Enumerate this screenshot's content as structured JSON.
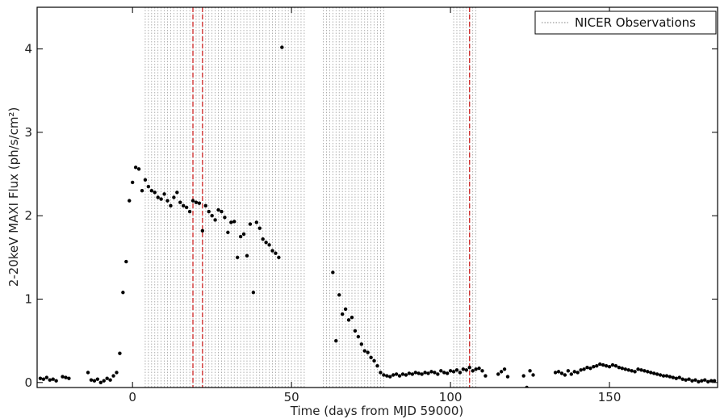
{
  "chart_data": {
    "type": "scatter",
    "xlabel": "Time (days from MJD 59000)",
    "ylabel": "2-20keV MAXI Flux (ph/s/cm²)",
    "xlim": [
      -30,
      184
    ],
    "ylim": [
      -0.06,
      4.5
    ],
    "x_ticks": [
      0,
      50,
      100,
      150
    ],
    "y_ticks": [
      0,
      1,
      2,
      3,
      4
    ],
    "grid": false,
    "legend": {
      "placement": "top-right",
      "entries": [
        "NICER Observations"
      ]
    },
    "colors": {
      "points": "#000000",
      "nicer_lines": "#9a9a9a",
      "highlight_lines": "#cc2222",
      "frame": "#000000"
    },
    "series": [
      {
        "name": "MAXI flux",
        "x": [
          -29,
          -28,
          -27,
          -26,
          -25,
          -24,
          -22,
          -21,
          -20,
          -14,
          -13,
          -12,
          -11,
          -10,
          -9,
          -8,
          -7,
          -6,
          -5,
          -4,
          -3,
          -2,
          -1,
          0,
          1,
          2,
          3,
          4,
          5,
          6,
          7,
          8,
          9,
          10,
          11,
          12,
          13,
          14,
          15,
          16,
          17,
          18,
          19,
          20,
          21,
          22,
          23,
          24,
          25,
          26,
          27,
          28,
          29,
          30,
          31,
          32,
          33,
          34,
          35,
          36,
          37,
          38,
          39,
          40,
          41,
          42,
          43,
          44,
          45,
          46,
          47,
          63,
          64,
          65,
          66,
          67,
          68,
          69,
          70,
          71,
          72,
          73,
          74,
          75,
          76,
          77,
          78,
          79,
          80,
          81,
          82,
          83,
          84,
          85,
          86,
          87,
          88,
          89,
          90,
          91,
          92,
          93,
          94,
          95,
          96,
          97,
          98,
          99,
          100,
          101,
          102,
          103,
          104,
          105,
          106,
          107,
          108,
          109,
          110,
          111,
          115,
          116,
          117,
          118,
          123,
          124,
          125,
          126,
          133,
          134,
          135,
          136,
          137,
          138,
          139,
          140,
          141,
          142,
          143,
          144,
          145,
          146,
          147,
          148,
          149,
          150,
          151,
          152,
          153,
          154,
          155,
          156,
          157,
          158,
          159,
          160,
          161,
          162,
          163,
          164,
          165,
          166,
          167,
          168,
          169,
          170,
          171,
          172,
          173,
          174,
          175,
          176,
          177,
          178,
          179,
          180,
          181,
          182,
          183
        ],
        "y": [
          0.05,
          0.04,
          0.06,
          0.03,
          0.04,
          0.02,
          0.07,
          0.06,
          0.05,
          0.12,
          0.03,
          0.02,
          0.04,
          0.0,
          0.02,
          0.05,
          0.03,
          0.08,
          0.12,
          0.35,
          1.08,
          1.45,
          2.18,
          2.4,
          2.58,
          2.56,
          2.3,
          2.43,
          2.35,
          2.3,
          2.28,
          2.22,
          2.2,
          2.26,
          2.18,
          2.12,
          2.22,
          2.28,
          2.16,
          2.12,
          2.1,
          2.05,
          2.18,
          2.16,
          2.15,
          1.82,
          2.12,
          2.05,
          2.0,
          1.95,
          2.07,
          2.05,
          1.98,
          1.8,
          1.92,
          1.93,
          1.5,
          1.75,
          1.78,
          1.52,
          1.9,
          1.08,
          1.92,
          1.85,
          1.72,
          1.68,
          1.65,
          1.58,
          1.55,
          1.5,
          4.02,
          1.32,
          0.5,
          1.05,
          0.82,
          0.88,
          0.75,
          0.78,
          0.62,
          0.55,
          0.46,
          0.38,
          0.36,
          0.3,
          0.26,
          0.2,
          0.12,
          0.09,
          0.08,
          0.07,
          0.09,
          0.1,
          0.08,
          0.1,
          0.09,
          0.11,
          0.1,
          0.12,
          0.11,
          0.1,
          0.12,
          0.11,
          0.13,
          0.12,
          0.1,
          0.14,
          0.12,
          0.11,
          0.14,
          0.13,
          0.15,
          0.12,
          0.16,
          0.15,
          0.18,
          0.14,
          0.16,
          0.17,
          0.14,
          0.08,
          0.1,
          0.13,
          0.16,
          0.07,
          0.08,
          -0.06,
          0.14,
          0.09,
          0.12,
          0.13,
          0.11,
          0.09,
          0.14,
          0.1,
          0.13,
          0.12,
          0.15,
          0.16,
          0.18,
          0.17,
          0.19,
          0.2,
          0.22,
          0.21,
          0.2,
          0.19,
          0.21,
          0.2,
          0.18,
          0.17,
          0.16,
          0.15,
          0.14,
          0.13,
          0.16,
          0.15,
          0.14,
          0.13,
          0.12,
          0.11,
          0.1,
          0.09,
          0.08,
          0.08,
          0.07,
          0.06,
          0.05,
          0.06,
          0.04,
          0.03,
          0.04,
          0.02,
          0.03,
          0.01,
          0.02,
          0.03,
          0.01,
          0.02,
          0.02
        ]
      }
    ],
    "nicer_observations": [
      4,
      5,
      6,
      7,
      8,
      9,
      10,
      11,
      12,
      13,
      14,
      15,
      16,
      17,
      18,
      19,
      20,
      21,
      22,
      23,
      24,
      25,
      26,
      27,
      28,
      29,
      30,
      31,
      32,
      33,
      34,
      35,
      36,
      37,
      38,
      39,
      40,
      41,
      42,
      43,
      44,
      45,
      46,
      47,
      48,
      49,
      50,
      51,
      52,
      53,
      54,
      60,
      61,
      62,
      63,
      64,
      65,
      66,
      67,
      68,
      69,
      70,
      71,
      72,
      73,
      74,
      75,
      76,
      77,
      78,
      79,
      101,
      102,
      103,
      104,
      105,
      106,
      107,
      108
    ],
    "highlighted_observations": [
      19,
      22,
      106
    ]
  }
}
